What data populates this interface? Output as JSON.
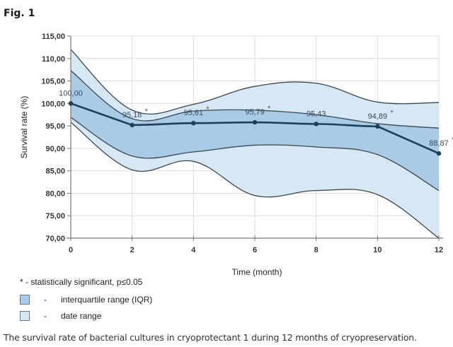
{
  "figure": {
    "label": "Fig. 1",
    "caption": "The survival rate of bacterial cultures in cryoprotectant 1 during 12 months of cryopreservation."
  },
  "legend": {
    "note": "* - statistically significant, p≤0.05",
    "items": [
      {
        "dash": "-",
        "label": "interquartile range (IQR)",
        "color": "#a9cbe5"
      },
      {
        "dash": "-",
        "label": "date range",
        "color": "#d6e8f4"
      }
    ]
  },
  "colors": {
    "iqr_fill": "#a9cbe5",
    "range_fill": "#d6e8f4",
    "median_line": "#1f3e58",
    "band_line": "#3a4652",
    "grid": "#dcdcdc",
    "axis": "#777777"
  },
  "chart_data": {
    "type": "area",
    "title": "",
    "xlabel": "Time (month)",
    "ylabel": "Survival rate (%)",
    "xlim": [
      0,
      12
    ],
    "ylim": [
      70,
      115
    ],
    "grid": true,
    "x_ticks": [
      "0",
      "2",
      "4",
      "6",
      "8",
      "10",
      "12"
    ],
    "y_ticks": [
      "70,00",
      "75,00",
      "80,00",
      "85,00",
      "90,00",
      "95,00",
      "100,00",
      "105,00",
      "110,00",
      "115,00"
    ],
    "x": [
      0,
      2,
      4,
      6,
      8,
      10,
      12
    ],
    "series": [
      {
        "name": "date range (max)",
        "values": [
          112.0,
          98.5,
          99.8,
          103.8,
          104.5,
          100.3,
          100.2
        ]
      },
      {
        "name": "IQR (Q3)",
        "values": [
          107.3,
          96.6,
          98.3,
          98.5,
          97.5,
          95.5,
          94.5
        ]
      },
      {
        "name": "median",
        "values": [
          100.0,
          95.18,
          95.61,
          95.79,
          95.43,
          94.89,
          88.87
        ]
      },
      {
        "name": "IQR (Q1)",
        "values": [
          96.9,
          88.3,
          89.2,
          90.7,
          90.3,
          88.6,
          80.6
        ]
      },
      {
        "name": "date range (min)",
        "values": [
          95.8,
          85.2,
          87.1,
          79.5,
          80.6,
          79.7,
          70.0
        ]
      }
    ],
    "data_labels": [
      "100,00",
      "95,18",
      "95,61",
      "95,79",
      "95,43",
      "94,89",
      "88,87"
    ],
    "significant": [
      false,
      true,
      true,
      true,
      false,
      true,
      true
    ],
    "legend_position": "bottom-left"
  }
}
